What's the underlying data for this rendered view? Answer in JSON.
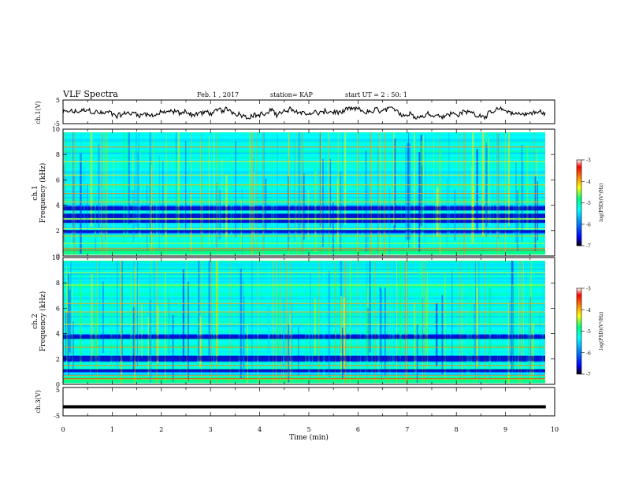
{
  "header": {
    "title": "VLF Spectra",
    "date": "Feb. 1 , 2017",
    "station": "station= KAP",
    "start_ut": "start UT =  2 : 50: 1"
  },
  "chart_data": [
    {
      "type": "line",
      "panel": "ch1-waveform",
      "ylabel": "ch.1(V)",
      "ylim": [
        -5,
        5
      ],
      "yticks": [
        "5",
        "-5"
      ],
      "xlim": [
        0,
        10
      ],
      "x_end": 9.82,
      "trace_style": "noisy waveform, approx. -2.5 to 1.5 V"
    },
    {
      "type": "heatmap",
      "panel": "ch1-spectrogram",
      "ylabel_channel": "ch.1",
      "ylabel": "Frequency  (kHz)",
      "ylim": [
        0,
        10
      ],
      "yticks": [
        "0",
        "2",
        "4",
        "6",
        "8",
        "10"
      ],
      "xlim": [
        0,
        9.82
      ],
      "dark_bands_khz": [
        [
          3.0,
          3.3
        ],
        [
          3.6,
          3.9
        ],
        [
          1.8,
          2.0
        ],
        [
          2.6,
          2.8
        ]
      ],
      "bright_lines_khz": [
        0.5,
        0.9,
        1.5,
        2.1,
        2.9,
        4.3,
        5.0,
        5.7,
        6.5,
        7.6,
        8.8
      ],
      "colorbar": {
        "label": "log(PSD)(V²/Hz)",
        "range": [
          -7,
          -3
        ],
        "ticks": [
          "-3",
          "-4",
          "-5",
          "-6",
          "-7"
        ]
      }
    },
    {
      "type": "heatmap",
      "panel": "ch2-spectrogram",
      "ylabel_channel": "ch.2",
      "ylabel": "Frequency  (kHz)",
      "ylim": [
        0,
        10
      ],
      "yticks": [
        "0",
        "2",
        "4",
        "6",
        "8",
        "10"
      ],
      "xlim": [
        0,
        9.82
      ],
      "dark_bands_khz": [
        [
          1.8,
          2.2
        ],
        [
          3.6,
          3.9
        ],
        [
          0.9,
          1.1
        ]
      ],
      "bright_lines_khz": [
        0.3,
        0.6,
        1.4,
        2.9,
        4.8,
        5.8,
        6.5,
        8.0,
        9.0
      ],
      "colorbar": {
        "label": "log(PSD)(V²/Hz)",
        "range": [
          -7,
          -3
        ],
        "ticks": [
          "-3",
          "-4",
          "-5",
          "-6",
          "-7"
        ]
      }
    },
    {
      "type": "line",
      "panel": "ch3-waveform",
      "ylabel": "ch.3(V)",
      "ylim": [
        -5,
        5
      ],
      "yticks": [
        "5",
        "-5"
      ],
      "xlim": [
        0,
        10
      ],
      "x_end": 9.82,
      "constant_value": -1.8
    }
  ],
  "xaxis": {
    "label": "Time  (min)",
    "ticks": [
      "0",
      "1",
      "2",
      "3",
      "4",
      "5",
      "6",
      "7",
      "8",
      "9",
      "10"
    ],
    "range": [
      0,
      10
    ]
  },
  "colors": {
    "axis": "#000000",
    "trace": "#000000",
    "colormap": [
      "#000000",
      "#0000ff",
      "#00a0ff",
      "#00ffff",
      "#00ff80",
      "#ffff00",
      "#ff8000",
      "#ff0000",
      "#ffffff"
    ]
  }
}
